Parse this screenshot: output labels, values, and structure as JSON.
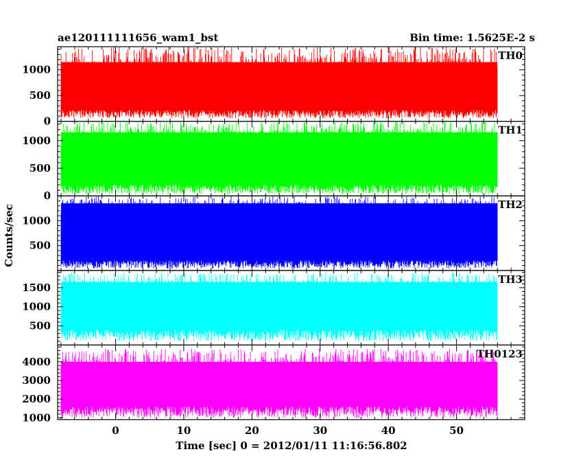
{
  "header": {
    "title": "ae120111111656_wam1_bst",
    "bin_time": "Bin time: 1.5625E-2 s"
  },
  "axes": {
    "xlabel": "Time [sec] 0 = 2012/01/11 11:16:56.802",
    "ylabel": "Counts/sec"
  },
  "chart_data": {
    "type": "line",
    "title": "ae120111111656_wam1_bst",
    "xlabel": "Time [sec] 0 = 2012/01/11 11:16:56.802",
    "ylabel": "Counts/sec",
    "xlim": [
      -8.5,
      60
    ],
    "x_ticks": [
      0,
      10,
      20,
      30,
      40,
      50
    ],
    "data_x_range": [
      -8,
      56
    ],
    "bin_time_s": 0.015625,
    "panels": [
      {
        "name": "TH0",
        "color": "#ff0000",
        "ylim": [
          0,
          1450
        ],
        "yticks": [
          0,
          500,
          1000
        ],
        "ylow": [
          60,
          220
        ],
        "yhigh": [
          800,
          1450
        ],
        "yhigh_typical": 1150
      },
      {
        "name": "TH1",
        "color": "#00ff00",
        "ylim": [
          0,
          1350
        ],
        "yticks": [
          0,
          500,
          1000
        ],
        "ylow": [
          30,
          200
        ],
        "yhigh": [
          900,
          1350
        ],
        "yhigh_typical": 1150
      },
      {
        "name": "TH2",
        "color": "#0000ff",
        "ylim": [
          0,
          1500
        ],
        "yticks": [
          500,
          1000
        ],
        "ylow": [
          40,
          200
        ],
        "yhigh": [
          1000,
          1500
        ],
        "yhigh_typical": 1350
      },
      {
        "name": "TH3",
        "color": "#00ffff",
        "ylim": [
          0,
          1950
        ],
        "yticks": [
          500,
          1000,
          1500
        ],
        "ylow": [
          100,
          400
        ],
        "yhigh": [
          1300,
          1900
        ],
        "yhigh_typical": 1650
      },
      {
        "name": "TH0123",
        "color": "#ff00ff",
        "ylim": [
          900,
          4900
        ],
        "yticks": [
          1000,
          2000,
          3000,
          4000
        ],
        "ylow": [
          1000,
          1600
        ],
        "yhigh": [
          3300,
          4700
        ],
        "yhigh_typical": 4000
      }
    ]
  }
}
